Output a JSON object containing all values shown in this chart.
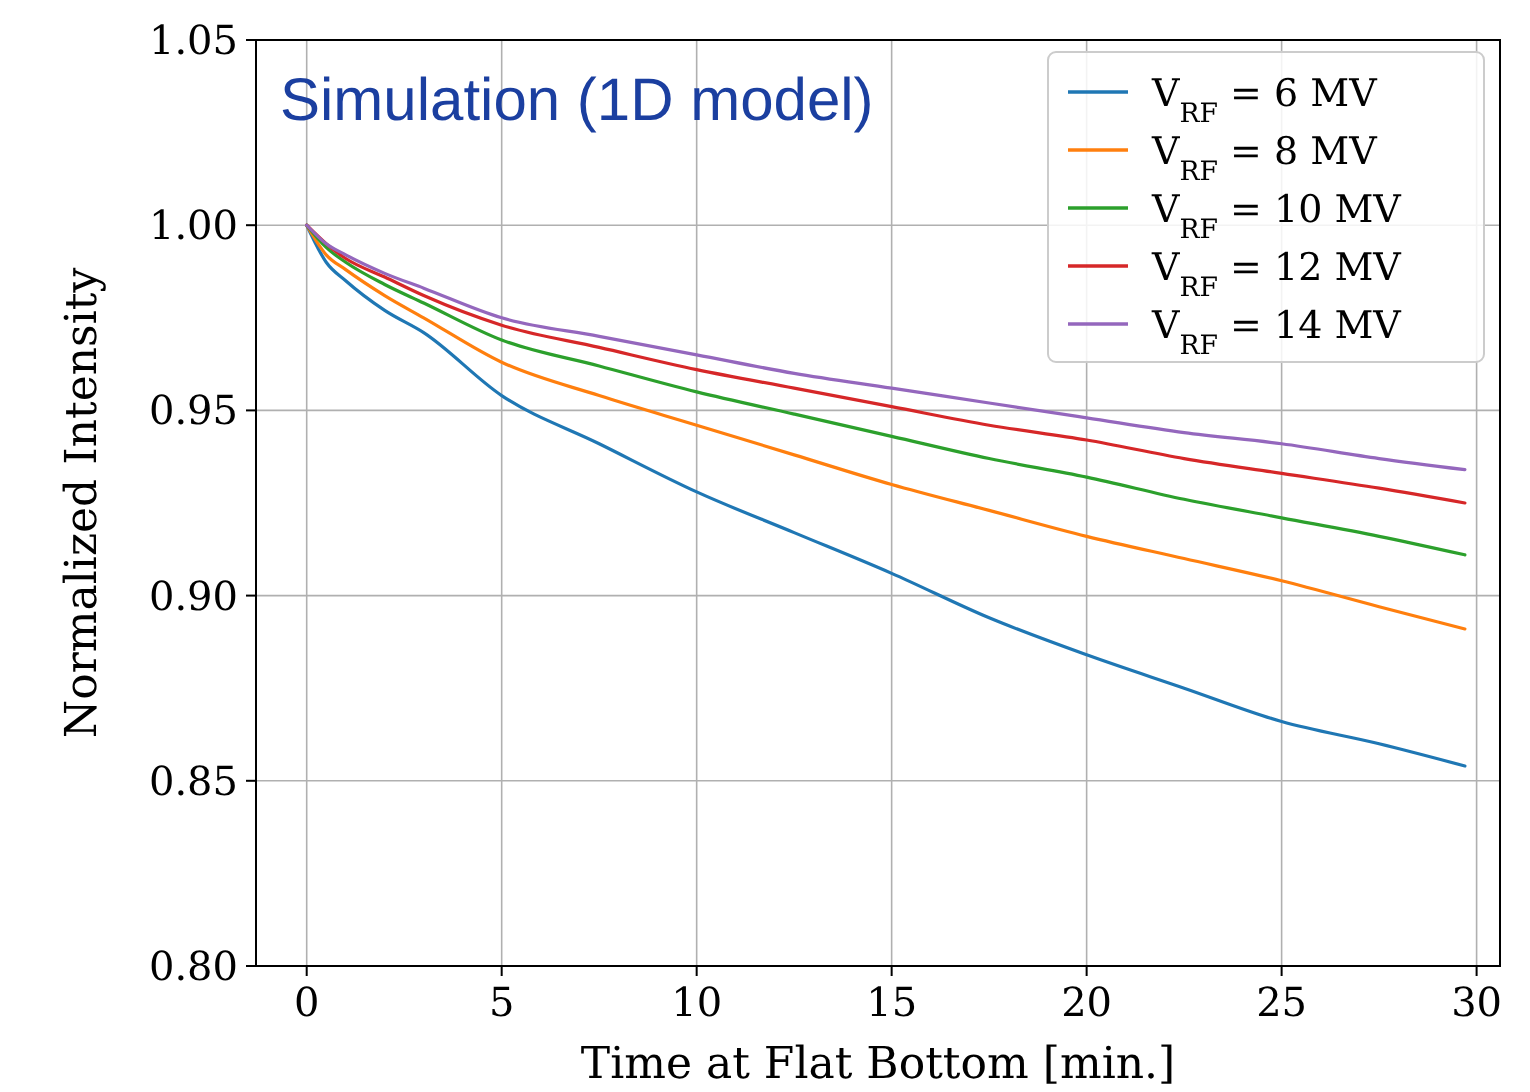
{
  "chart_data": {
    "type": "line",
    "xlabel": "Time at Flat Bottom [min.]",
    "ylabel": "Normalized Intensity",
    "annotations": [
      "Simulation (1D model)"
    ],
    "xlim": [
      -1.3,
      30.6
    ],
    "xticks": [
      0,
      5,
      10,
      15,
      20,
      25,
      30
    ],
    "ylim": [
      0.8,
      1.05
    ],
    "yticks": [
      {
        "value": 0.8,
        "label": "0.80"
      },
      {
        "value": 0.85,
        "label": "0.85"
      },
      {
        "value": 0.9,
        "label": "0.90"
      },
      {
        "value": 0.95,
        "label": "0.95"
      },
      {
        "value": 1.0,
        "label": "1.00"
      },
      {
        "value": 1.05,
        "label": "1.05"
      }
    ],
    "grid": true,
    "legend": "top right",
    "marker": "none",
    "line_style": "solid",
    "x": [
      0,
      0.5,
      1,
      2,
      3,
      5,
      7.5,
      10,
      12.5,
      15,
      17.5,
      20,
      22.5,
      25,
      27.5,
      29.7
    ],
    "series": [
      {
        "name": "V$_{RF}$ = 6 MV",
        "color": "#1f77b4",
        "values": [
          1.0,
          0.99,
          0.985,
          0.977,
          0.971,
          0.954,
          0.941,
          0.928,
          0.917,
          0.906,
          0.894,
          0.884,
          0.875,
          0.866,
          0.86,
          0.854
        ]
      },
      {
        "name": "V$_{RF}$ = 8 MV",
        "color": "#ff7f0e",
        "values": [
          1.0,
          0.992,
          0.988,
          0.981,
          0.975,
          0.963,
          0.954,
          0.946,
          0.938,
          0.93,
          0.923,
          0.916,
          0.91,
          0.904,
          0.897,
          0.891
        ]
      },
      {
        "name": "V$_{RF}$ = 10 MV",
        "color": "#2ca02c",
        "values": [
          1.0,
          0.994,
          0.99,
          0.984,
          0.979,
          0.969,
          0.962,
          0.955,
          0.949,
          0.943,
          0.937,
          0.932,
          0.926,
          0.921,
          0.916,
          0.911
        ]
      },
      {
        "name": "V$_{RF}$ = 12 MV",
        "color": "#d62728",
        "values": [
          1.0,
          0.995,
          0.991,
          0.986,
          0.981,
          0.973,
          0.967,
          0.961,
          0.956,
          0.951,
          0.946,
          0.942,
          0.937,
          0.933,
          0.929,
          0.925
        ]
      },
      {
        "name": "V$_{RF}$ = 14 MV",
        "color": "#9467bd",
        "values": [
          1.0,
          0.995,
          0.992,
          0.987,
          0.983,
          0.975,
          0.97,
          0.965,
          0.96,
          0.956,
          0.952,
          0.948,
          0.944,
          0.941,
          0.937,
          0.934
        ]
      }
    ]
  }
}
